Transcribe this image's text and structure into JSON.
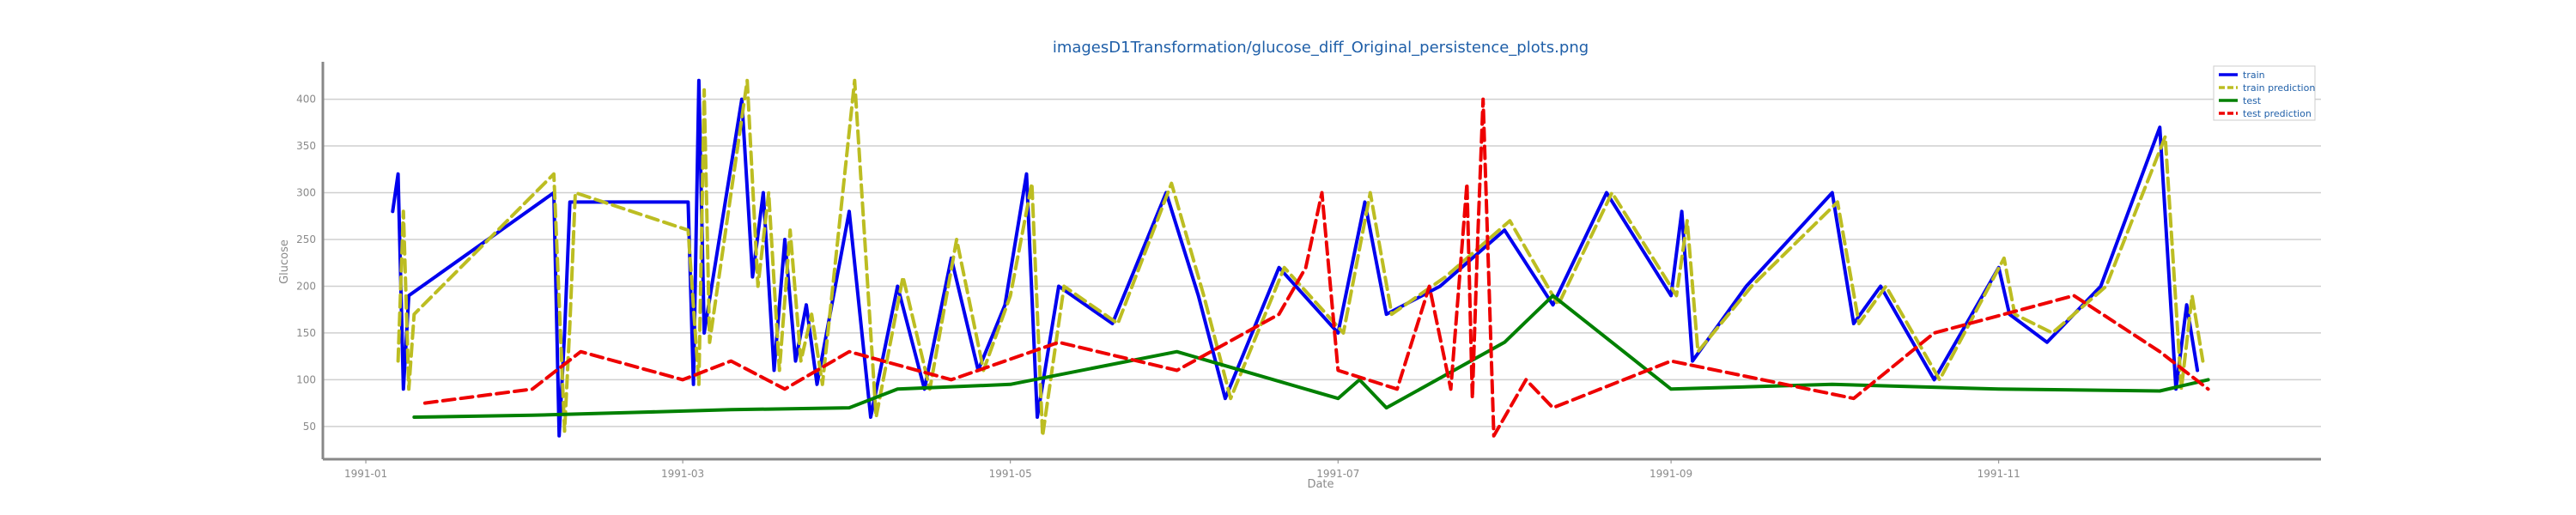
{
  "chart_data": {
    "type": "line",
    "title": "imagesD1Transformation/glucose_diff_Original_persistence_plots.png",
    "xlabel": "Date",
    "ylabel": "Glucose",
    "x_ticks": [
      "1991-01",
      "1991-03",
      "1991-05",
      "1991-07",
      "1991-09",
      "1991-11"
    ],
    "x_range": [
      "1990-12-24",
      "1991-12-31"
    ],
    "y_ticks": [
      50,
      100,
      150,
      200,
      250,
      300,
      350,
      400
    ],
    "ylim": [
      15,
      440
    ],
    "grid": "horizontal",
    "legend_placement": "top-right",
    "series": [
      {
        "name": "train",
        "color": "#0000ee",
        "dash": "solid",
        "x": [
          "1991-01-06",
          "1991-01-07",
          "1991-01-08",
          "1991-01-09",
          "1991-02-05",
          "1991-02-06",
          "1991-02-07",
          "1991-02-08",
          "1991-03-02",
          "1991-03-03",
          "1991-03-04",
          "1991-03-05",
          "1991-03-12",
          "1991-03-14",
          "1991-03-16",
          "1991-03-18",
          "1991-03-20",
          "1991-03-22",
          "1991-03-24",
          "1991-03-26",
          "1991-04-01",
          "1991-04-05",
          "1991-04-10",
          "1991-04-15",
          "1991-04-20",
          "1991-04-25",
          "1991-04-30",
          "1991-05-04",
          "1991-05-06",
          "1991-05-10",
          "1991-05-20",
          "1991-05-30",
          "1991-06-05",
          "1991-06-10",
          "1991-06-20",
          "1991-07-01",
          "1991-07-06",
          "1991-07-10",
          "1991-07-20",
          "1991-08-01",
          "1991-08-10",
          "1991-08-20",
          "1991-09-01",
          "1991-09-03",
          "1991-09-05",
          "1991-09-15",
          "1991-10-01",
          "1991-10-05",
          "1991-10-10",
          "1991-10-20",
          "1991-11-01",
          "1991-11-03",
          "1991-11-10",
          "1991-11-20",
          "1991-12-01",
          "1991-12-04",
          "1991-12-06",
          "1991-12-08"
        ],
        "y": [
          280,
          320,
          90,
          190,
          300,
          40,
          150,
          290,
          290,
          95,
          420,
          150,
          400,
          210,
          300,
          110,
          250,
          120,
          180,
          95,
          280,
          60,
          200,
          90,
          230,
          110,
          180,
          320,
          60,
          200,
          160,
          300,
          190,
          80,
          220,
          150,
          290,
          170,
          200,
          260,
          180,
          300,
          190,
          280,
          120,
          200,
          300,
          160,
          200,
          100,
          220,
          170,
          140,
          200,
          370,
          90,
          180,
          110
        ]
      },
      {
        "name": "train prediction",
        "color": "#bcbd22",
        "dash": "dashed",
        "x": [
          "1991-01-07",
          "1991-01-08",
          "1991-01-09",
          "1991-01-10",
          "1991-02-05",
          "1991-02-07",
          "1991-02-08",
          "1991-02-09",
          "1991-03-02",
          "1991-03-04",
          "1991-03-05",
          "1991-03-06",
          "1991-03-13",
          "1991-03-15",
          "1991-03-17",
          "1991-03-19",
          "1991-03-21",
          "1991-03-23",
          "1991-03-25",
          "1991-03-27",
          "1991-04-02",
          "1991-04-06",
          "1991-04-11",
          "1991-04-16",
          "1991-04-21",
          "1991-04-26",
          "1991-05-01",
          "1991-05-05",
          "1991-05-07",
          "1991-05-11",
          "1991-05-21",
          "1991-05-31",
          "1991-06-06",
          "1991-06-11",
          "1991-06-21",
          "1991-07-02",
          "1991-07-07",
          "1991-07-11",
          "1991-07-21",
          "1991-08-02",
          "1991-08-11",
          "1991-08-21",
          "1991-09-02",
          "1991-09-04",
          "1991-09-06",
          "1991-09-16",
          "1991-10-02",
          "1991-10-06",
          "1991-10-11",
          "1991-10-21",
          "1991-11-02",
          "1991-11-04",
          "1991-11-11",
          "1991-11-21",
          "1991-12-02",
          "1991-12-05",
          "1991-12-07",
          "1991-12-09"
        ],
        "y": [
          120,
          280,
          90,
          170,
          320,
          45,
          160,
          300,
          260,
          95,
          410,
          140,
          420,
          200,
          300,
          110,
          260,
          120,
          170,
          95,
          420,
          60,
          210,
          90,
          250,
          110,
          190,
          310,
          40,
          200,
          160,
          310,
          190,
          80,
          220,
          150,
          300,
          170,
          210,
          270,
          180,
          300,
          190,
          270,
          130,
          200,
          290,
          160,
          200,
          100,
          230,
          170,
          150,
          200,
          360,
          90,
          190,
          120
        ]
      },
      {
        "name": "test",
        "color": "#008000",
        "dash": "solid",
        "x": [
          "1991-01-10",
          "1991-02-01",
          "1991-02-20",
          "1991-03-10",
          "1991-04-01",
          "1991-04-10",
          "1991-05-01",
          "1991-06-01",
          "1991-07-01",
          "1991-07-05",
          "1991-07-10",
          "1991-08-01",
          "1991-08-10",
          "1991-09-01",
          "1991-10-01",
          "1991-11-01",
          "1991-12-01",
          "1991-12-10"
        ],
        "y": [
          60,
          62,
          65,
          68,
          70,
          90,
          95,
          130,
          80,
          100,
          70,
          140,
          190,
          90,
          95,
          90,
          88,
          100
        ]
      },
      {
        "name": "test prediction",
        "color": "#ee0000",
        "dash": "dashed",
        "x": [
          "1991-01-12",
          "1991-02-01",
          "1991-02-10",
          "1991-03-01",
          "1991-03-10",
          "1991-03-20",
          "1991-04-01",
          "1991-04-20",
          "1991-05-10",
          "1991-06-01",
          "1991-06-20",
          "1991-06-25",
          "1991-06-28",
          "1991-07-01",
          "1991-07-12",
          "1991-07-18",
          "1991-07-22",
          "1991-07-25",
          "1991-07-26",
          "1991-07-27",
          "1991-07-28",
          "1991-07-30",
          "1991-08-05",
          "1991-08-10",
          "1991-09-01",
          "1991-10-05",
          "1991-10-20",
          "1991-11-15",
          "1991-12-01",
          "1991-12-10"
        ],
        "y": [
          75,
          90,
          130,
          100,
          120,
          90,
          130,
          100,
          140,
          110,
          170,
          220,
          300,
          110,
          90,
          200,
          90,
          310,
          80,
          250,
          400,
          40,
          100,
          70,
          120,
          80,
          150,
          190,
          130,
          90
        ]
      }
    ]
  }
}
